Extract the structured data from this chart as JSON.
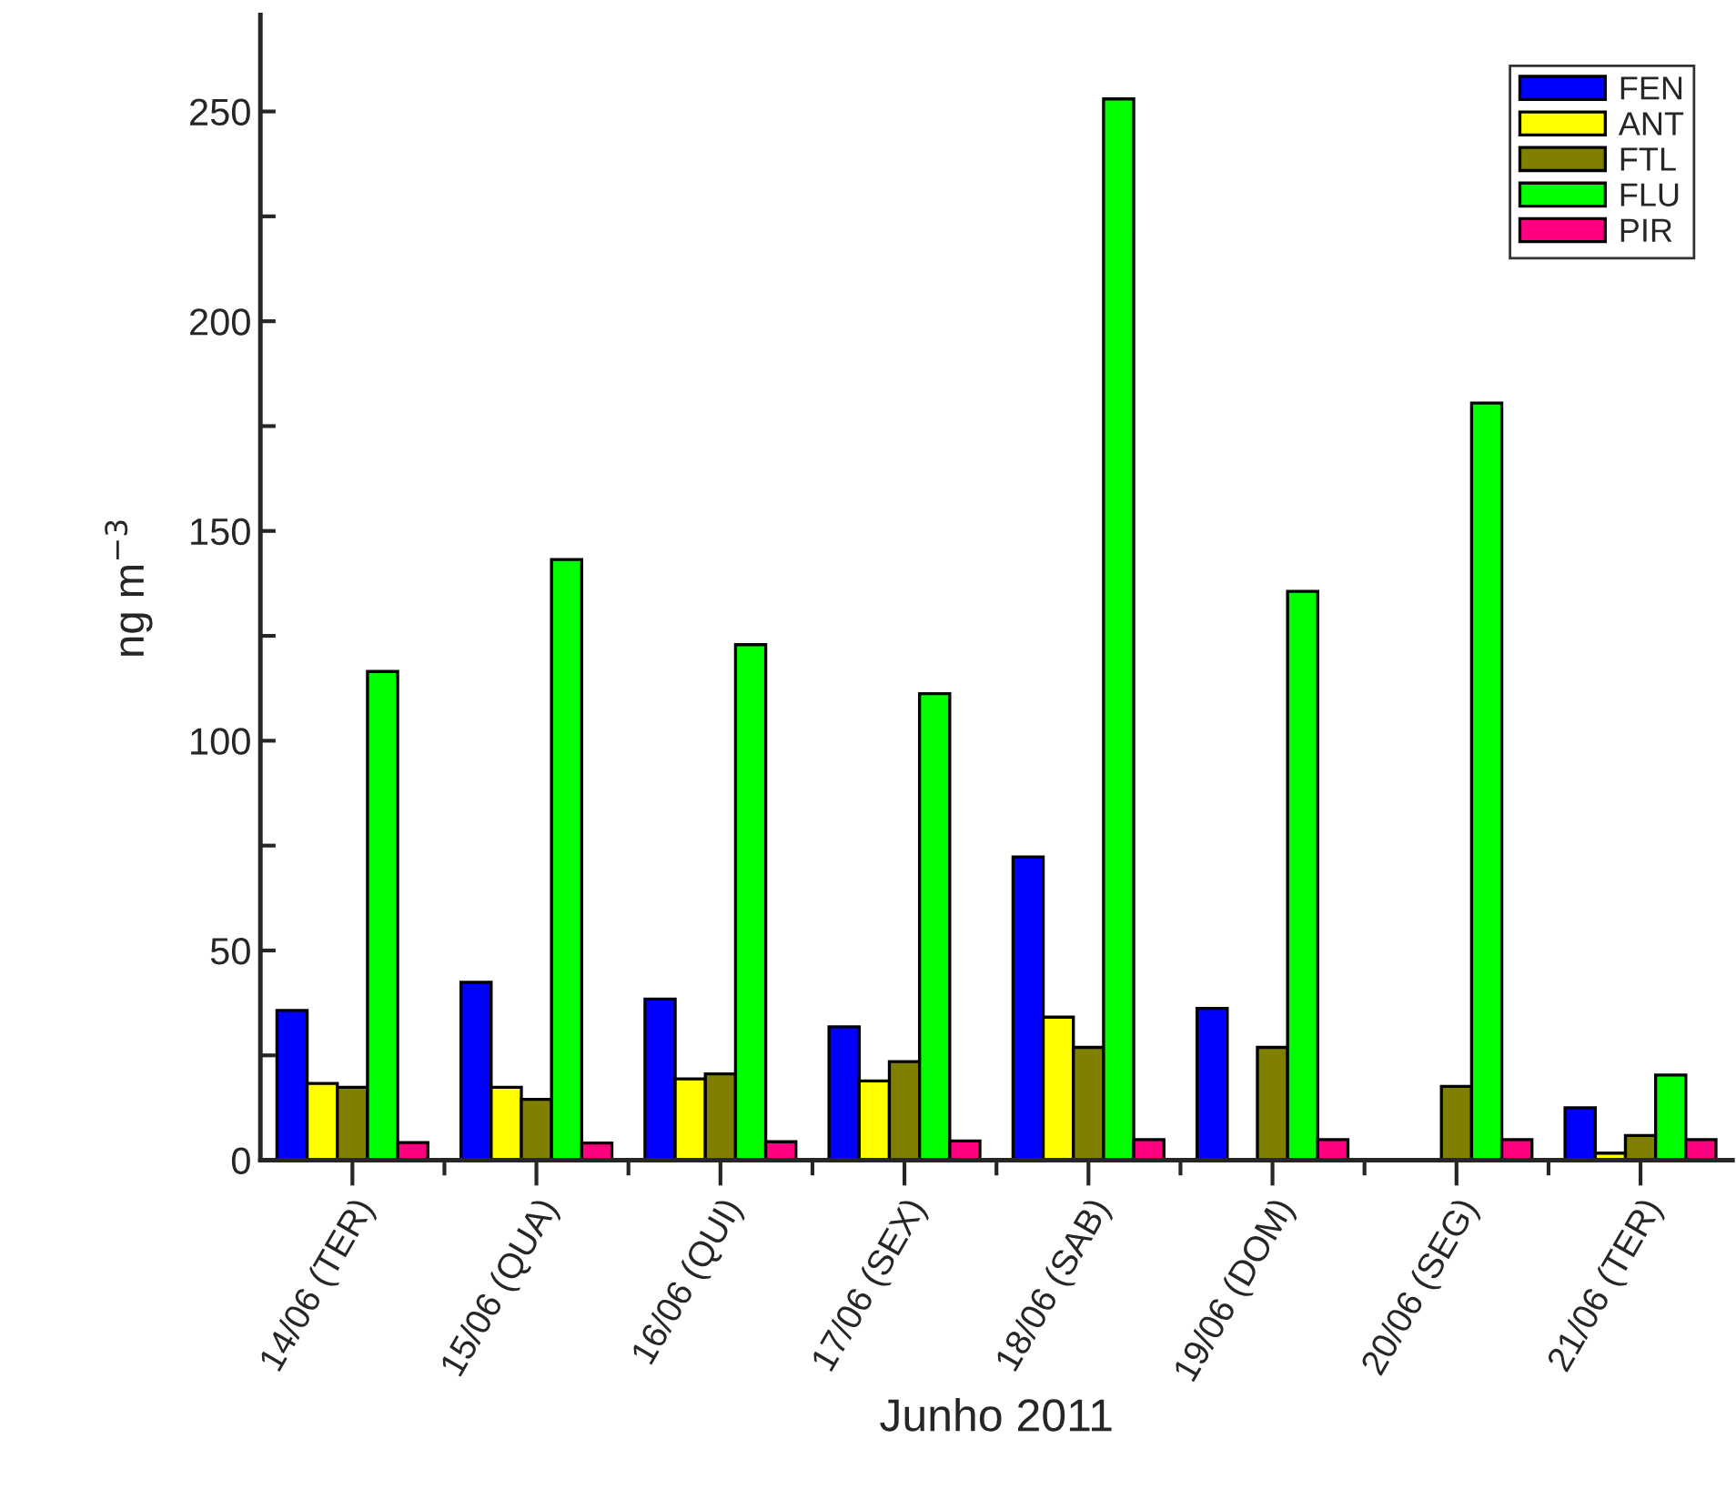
{
  "chart_data": {
    "type": "bar",
    "xlabel": "Junho 2011",
    "ylabel": "ng m$^{−3}$",
    "categories": [
      "14/06 (TER)",
      "15/06 (QUA)",
      "16/06 (QUI)",
      "17/06 (SEX)",
      "18/06 (SAB)",
      "19/06 (DOM)",
      "20/06 (SEG)",
      "21/06 (TER)"
    ],
    "series": [
      {
        "name": "FEN",
        "color": "#0000ff",
        "values": [
          35.7,
          42.4,
          38.4,
          31.8,
          72.3,
          36.2,
          null,
          12.5
        ]
      },
      {
        "name": "ANT",
        "color": "#ffff00",
        "values": [
          18.3,
          17.4,
          19.4,
          18.9,
          34.1,
          null,
          null,
          1.7
        ]
      },
      {
        "name": "FTL",
        "color": "#808000",
        "values": [
          17.4,
          14.5,
          20.6,
          23.5,
          26.9,
          26.9,
          17.6,
          5.9
        ]
      },
      {
        "name": "FLU",
        "color": "#00ff00",
        "values": [
          116.5,
          143.2,
          122.9,
          111.2,
          253.0,
          135.6,
          180.5,
          20.3
        ]
      },
      {
        "name": "PIR",
        "color": "#ff0080",
        "values": [
          4.2,
          4.1,
          4.4,
          4.6,
          4.9,
          4.9,
          4.9,
          4.9
        ]
      }
    ],
    "ylim": [
      0,
      273
    ],
    "yticks": [
      0,
      {
        "value": 25,
        "label": null
      },
      50,
      {
        "value": 75,
        "label": null
      },
      100,
      {
        "value": 125,
        "label": null
      },
      150,
      {
        "value": 175,
        "label": null
      },
      200,
      {
        "value": 225,
        "label": null
      },
      250
    ],
    "legend": "top right",
    "grid": false
  }
}
